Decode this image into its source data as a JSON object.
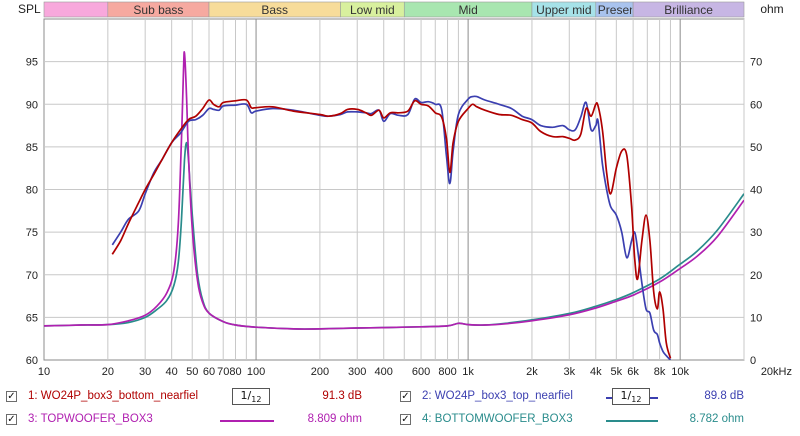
{
  "chart_data": {
    "type": "line",
    "x_scale": "log",
    "xlim": [
      10,
      20000
    ],
    "ylim_left": [
      60,
      100
    ],
    "ylim_right": [
      0,
      80
    ],
    "left_axis_label": "SPL",
    "right_axis_label": "ohm",
    "left_ticks": [
      "60",
      "65",
      "70",
      "75",
      "80",
      "85",
      "90",
      "95"
    ],
    "right_ticks": [
      "0",
      "10",
      "20",
      "30",
      "40",
      "50",
      "60",
      "70"
    ],
    "x_ticks": [
      {
        "v": 10,
        "label": "10"
      },
      {
        "v": 20,
        "label": "20"
      },
      {
        "v": 30,
        "label": "30"
      },
      {
        "v": 40,
        "label": "40"
      },
      {
        "v": 50,
        "label": "50"
      },
      {
        "v": 60,
        "label": "60"
      },
      {
        "v": 70,
        "label": "70"
      },
      {
        "v": 80,
        "label": "80"
      },
      {
        "v": 100,
        "label": "100"
      },
      {
        "v": 200,
        "label": "200"
      },
      {
        "v": 300,
        "label": "300"
      },
      {
        "v": 400,
        "label": "400"
      },
      {
        "v": 600,
        "label": "600"
      },
      {
        "v": 800,
        "label": "800"
      },
      {
        "v": 1000,
        "label": "1k"
      },
      {
        "v": 2000,
        "label": "2k"
      },
      {
        "v": 3000,
        "label": "3k"
      },
      {
        "v": 4000,
        "label": "4k"
      },
      {
        "v": 5000,
        "label": "5k"
      },
      {
        "v": 6000,
        "label": "6k"
      },
      {
        "v": 8000,
        "label": "8k"
      },
      {
        "v": 10000,
        "label": "10k"
      },
      {
        "v": 20000,
        "label": "20kHz"
      }
    ],
    "bands": [
      {
        "name": "",
        "from": 10,
        "to": 20,
        "color": "#f8a8dc"
      },
      {
        "name": "Sub bass",
        "from": 20,
        "to": 60,
        "color": "#f6a9a0"
      },
      {
        "name": "Bass",
        "from": 60,
        "to": 250,
        "color": "#f7dc9a"
      },
      {
        "name": "Low mid",
        "from": 250,
        "to": 500,
        "color": "#d8f09e"
      },
      {
        "name": "Mid",
        "from": 500,
        "to": 2000,
        "color": "#a8e6b0"
      },
      {
        "name": "Upper mid",
        "from": 2000,
        "to": 4000,
        "color": "#a6e2e8"
      },
      {
        "name": "Presence",
        "from": 4000,
        "to": 6000,
        "color": "#a9c3ee"
      },
      {
        "name": "Brilliance",
        "from": 6000,
        "to": 20000,
        "color": "#c7b6e4"
      }
    ],
    "series": [
      {
        "name": "1: WO24P_box3_bottom_nearfiel",
        "color": "#b00000",
        "axis": "left",
        "points": [
          [
            21,
            72.4
          ],
          [
            23,
            74
          ],
          [
            25,
            76
          ],
          [
            28,
            78.5
          ],
          [
            30,
            80
          ],
          [
            33,
            81.8
          ],
          [
            36,
            83.5
          ],
          [
            40,
            85.5
          ],
          [
            44,
            87
          ],
          [
            48,
            88.2
          ],
          [
            52,
            88.6
          ],
          [
            56,
            89.5
          ],
          [
            60,
            90.5
          ],
          [
            63,
            90.0
          ],
          [
            67,
            89.7
          ],
          [
            70,
            90.2
          ],
          [
            80,
            90.4
          ],
          [
            90,
            90.5
          ],
          [
            95,
            89.6
          ],
          [
            100,
            89.6
          ],
          [
            120,
            89.7
          ],
          [
            150,
            89.2
          ],
          [
            200,
            88.8
          ],
          [
            220,
            88.6
          ],
          [
            250,
            88.9
          ],
          [
            270,
            89.4
          ],
          [
            300,
            89.4
          ],
          [
            330,
            89.0
          ],
          [
            350,
            88.7
          ],
          [
            380,
            89.3
          ],
          [
            400,
            88.4
          ],
          [
            430,
            89.0
          ],
          [
            470,
            89.0
          ],
          [
            520,
            89.2
          ],
          [
            560,
            90.4
          ],
          [
            600,
            90.0
          ],
          [
            650,
            89.8
          ],
          [
            700,
            89.0
          ],
          [
            750,
            88.5
          ],
          [
            790,
            86.0
          ],
          [
            820,
            82.0
          ],
          [
            850,
            85.5
          ],
          [
            900,
            88.0
          ],
          [
            1000,
            89.5
          ],
          [
            1050,
            90.0
          ],
          [
            1100,
            89.7
          ],
          [
            1200,
            89.3
          ],
          [
            1400,
            88.8
          ],
          [
            1600,
            88.7
          ],
          [
            1800,
            88.2
          ],
          [
            2000,
            87.8
          ],
          [
            2200,
            86.8
          ],
          [
            2500,
            86.2
          ],
          [
            2800,
            86.2
          ],
          [
            3000,
            86.0
          ],
          [
            3200,
            85.8
          ],
          [
            3400,
            86.5
          ],
          [
            3600,
            89.5
          ],
          [
            3800,
            88.6
          ],
          [
            4000,
            90.0
          ],
          [
            4100,
            89.8
          ],
          [
            4300,
            87.0
          ],
          [
            4500,
            82.0
          ],
          [
            4700,
            79.5
          ],
          [
            5000,
            82.5
          ],
          [
            5300,
            84.5
          ],
          [
            5600,
            84.0
          ],
          [
            5900,
            78.0
          ],
          [
            6100,
            72.0
          ],
          [
            6300,
            69.5
          ],
          [
            6600,
            74.0
          ],
          [
            6900,
            77.0
          ],
          [
            7200,
            74.0
          ],
          [
            7500,
            68.0
          ],
          [
            7800,
            66.0
          ],
          [
            8000,
            68.0
          ],
          [
            8300,
            66.0
          ],
          [
            8600,
            62.0
          ],
          [
            9000,
            60.2
          ]
        ]
      },
      {
        "name": "2: WO24P_box3_top_nearfiel",
        "color": "#3b3fb0",
        "axis": "left",
        "points": [
          [
            21,
            73.5
          ],
          [
            23,
            75
          ],
          [
            25,
            76.5
          ],
          [
            28,
            77.5
          ],
          [
            30,
            79.5
          ],
          [
            33,
            82
          ],
          [
            36,
            83.5
          ],
          [
            40,
            85.5
          ],
          [
            44,
            86.6
          ],
          [
            48,
            88.0
          ],
          [
            52,
            88.2
          ],
          [
            56,
            88.7
          ],
          [
            60,
            89.5
          ],
          [
            63,
            89.4
          ],
          [
            67,
            89.3
          ],
          [
            70,
            89.8
          ],
          [
            80,
            89.9
          ],
          [
            90,
            90.0
          ],
          [
            95,
            89.0
          ],
          [
            100,
            89.2
          ],
          [
            120,
            89.5
          ],
          [
            150,
            89.3
          ],
          [
            200,
            88.7
          ],
          [
            220,
            88.6
          ],
          [
            250,
            88.8
          ],
          [
            270,
            89.1
          ],
          [
            300,
            89.1
          ],
          [
            330,
            89.0
          ],
          [
            350,
            88.9
          ],
          [
            380,
            89.3
          ],
          [
            400,
            88.0
          ],
          [
            430,
            88.9
          ],
          [
            470,
            88.7
          ],
          [
            520,
            88.8
          ],
          [
            560,
            90.6
          ],
          [
            600,
            90.2
          ],
          [
            650,
            90.3
          ],
          [
            700,
            90.0
          ],
          [
            750,
            89.4
          ],
          [
            790,
            84.0
          ],
          [
            820,
            80.7
          ],
          [
            850,
            84.5
          ],
          [
            900,
            88.8
          ],
          [
            1000,
            90.6
          ],
          [
            1050,
            90.9
          ],
          [
            1100,
            90.9
          ],
          [
            1200,
            90.5
          ],
          [
            1400,
            90.0
          ],
          [
            1600,
            89.5
          ],
          [
            1800,
            88.6
          ],
          [
            2000,
            88.2
          ],
          [
            2200,
            87.5
          ],
          [
            2500,
            87.3
          ],
          [
            2800,
            87.5
          ],
          [
            3000,
            87.0
          ],
          [
            3200,
            87.0
          ],
          [
            3400,
            88.5
          ],
          [
            3600,
            90.2
          ],
          [
            3800,
            87.0
          ],
          [
            4000,
            87.5
          ],
          [
            4100,
            88.0
          ],
          [
            4300,
            83.0
          ],
          [
            4500,
            80.0
          ],
          [
            4700,
            78.0
          ],
          [
            5000,
            77.0
          ],
          [
            5300,
            75.0
          ],
          [
            5600,
            72.0
          ],
          [
            5900,
            74.0
          ],
          [
            6100,
            75.0
          ],
          [
            6300,
            73.0
          ],
          [
            6600,
            69.0
          ],
          [
            6900,
            66.0
          ],
          [
            7200,
            65.5
          ],
          [
            7500,
            63.5
          ],
          [
            7800,
            63.0
          ],
          [
            8000,
            62.0
          ],
          [
            8300,
            61.0
          ],
          [
            8600,
            60.5
          ],
          [
            9000,
            60.0
          ]
        ]
      },
      {
        "name": "3: TOPWOOFER_BOX3",
        "color": "#b020b0",
        "axis": "right",
        "points": [
          [
            10,
            8
          ],
          [
            15,
            8.2
          ],
          [
            20,
            8.3
          ],
          [
            25,
            9.2
          ],
          [
            30,
            10.5
          ],
          [
            34,
            12.6
          ],
          [
            38,
            15.8
          ],
          [
            41,
            21
          ],
          [
            43,
            32
          ],
          [
            44.5,
            52
          ],
          [
            45.5,
            68
          ],
          [
            46,
            72
          ],
          [
            47,
            62
          ],
          [
            48,
            48
          ],
          [
            50,
            31
          ],
          [
            53,
            18.5
          ],
          [
            56,
            13.5
          ],
          [
            60,
            11
          ],
          [
            70,
            9
          ],
          [
            80,
            8.2
          ],
          [
            100,
            7.7
          ],
          [
            150,
            7.3
          ],
          [
            200,
            7.3
          ],
          [
            300,
            7.5
          ],
          [
            400,
            7.6
          ],
          [
            600,
            7.8
          ],
          [
            800,
            8.0
          ],
          [
            900,
            8.6
          ],
          [
            1000,
            8.3
          ],
          [
            1200,
            8.2
          ],
          [
            1500,
            8.5
          ],
          [
            2000,
            9.2
          ],
          [
            3000,
            10.6
          ],
          [
            4000,
            12.2
          ],
          [
            5000,
            13.8
          ],
          [
            6000,
            15.2
          ],
          [
            8000,
            18.3
          ],
          [
            10000,
            21.5
          ],
          [
            12000,
            24.3
          ],
          [
            15000,
            29
          ],
          [
            20000,
            37.5
          ]
        ]
      },
      {
        "name": "4: BOTTOMWOOFER_BOX3",
        "color": "#2a8c8c",
        "axis": "right",
        "points": [
          [
            10,
            8
          ],
          [
            15,
            8.2
          ],
          [
            20,
            8.3
          ],
          [
            25,
            8.8
          ],
          [
            30,
            10
          ],
          [
            34,
            11.8
          ],
          [
            38,
            14
          ],
          [
            41,
            17.5
          ],
          [
            43,
            23
          ],
          [
            44.5,
            33
          ],
          [
            46,
            47
          ],
          [
            47,
            51
          ],
          [
            48,
            47
          ],
          [
            49,
            40
          ],
          [
            51,
            29
          ],
          [
            53,
            20
          ],
          [
            56,
            14
          ],
          [
            60,
            11
          ],
          [
            70,
            9
          ],
          [
            80,
            8.2
          ],
          [
            100,
            7.7
          ],
          [
            150,
            7.3
          ],
          [
            200,
            7.3
          ],
          [
            300,
            7.5
          ],
          [
            400,
            7.6
          ],
          [
            600,
            7.8
          ],
          [
            800,
            8.0
          ],
          [
            900,
            8.6
          ],
          [
            1000,
            8.3
          ],
          [
            1200,
            8.2
          ],
          [
            1500,
            8.6
          ],
          [
            2000,
            9.4
          ],
          [
            3000,
            10.9
          ],
          [
            4000,
            12.6
          ],
          [
            5000,
            14.2
          ],
          [
            6000,
            15.8
          ],
          [
            8000,
            19
          ],
          [
            10000,
            22.5
          ],
          [
            12000,
            25.5
          ],
          [
            15000,
            30.5
          ],
          [
            20000,
            39
          ]
        ]
      }
    ]
  },
  "legend": [
    {
      "checked": "✓",
      "name": "1: WO24P_box3_bottom_nearfiel",
      "smoothing": "1/12",
      "value": "91.3 dB",
      "color": "#b00000"
    },
    {
      "checked": "✓",
      "name": "2: WO24P_box3_top_nearfiel",
      "smoothing": "1/12",
      "value": "89.8 dB",
      "color": "#3b3fb0"
    },
    {
      "checked": "✓",
      "name": "3: TOPWOOFER_BOX3",
      "smoothing": "",
      "value": "8.809 ohm",
      "color": "#b020b0"
    },
    {
      "checked": "✓",
      "name": "4: BOTTOMWOOFER_BOX3",
      "smoothing": "",
      "value": "8.782 ohm",
      "color": "#2a8c8c"
    }
  ]
}
